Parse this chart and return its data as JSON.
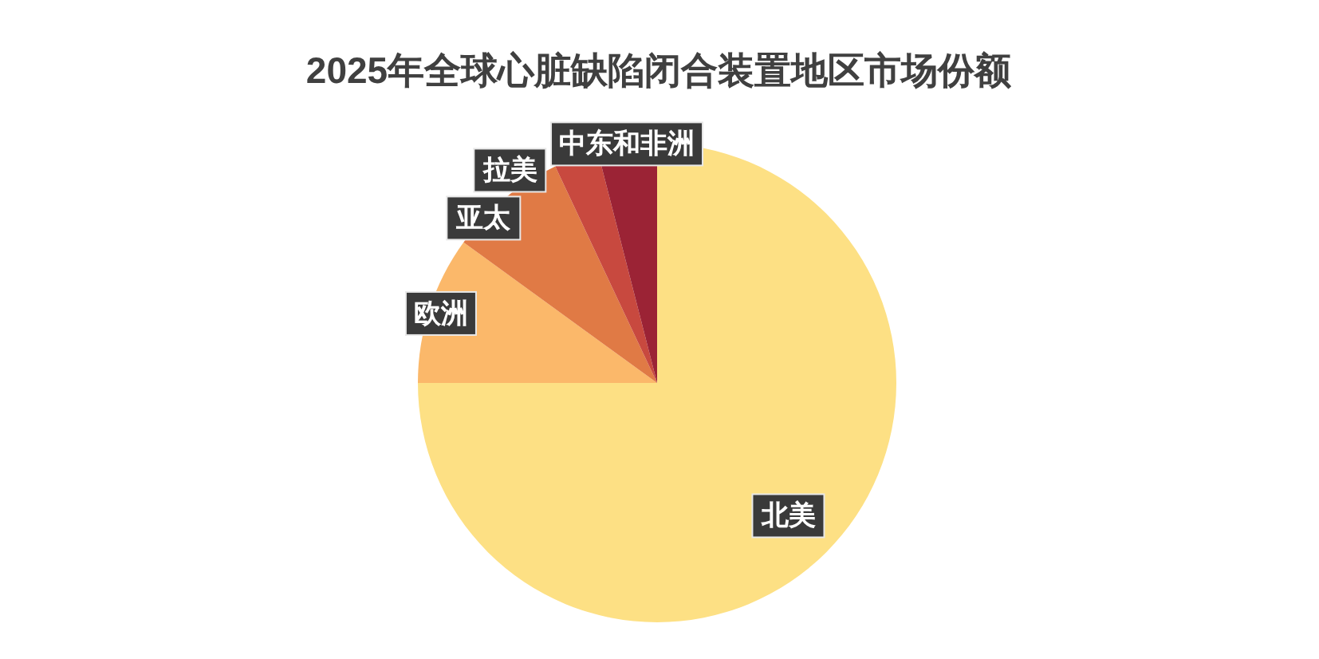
{
  "chart_data": {
    "type": "pie",
    "title": "2025年全球心脏缺陷闭合装置地区市场份额",
    "categories": [
      "北美",
      "欧洲",
      "亚太",
      "拉美",
      "中东和非洲"
    ],
    "values": [
      75,
      10,
      8,
      3,
      4
    ],
    "colors": [
      "#fde084",
      "#fbb86a",
      "#e07a45",
      "#c8493f",
      "#9b2335"
    ]
  }
}
